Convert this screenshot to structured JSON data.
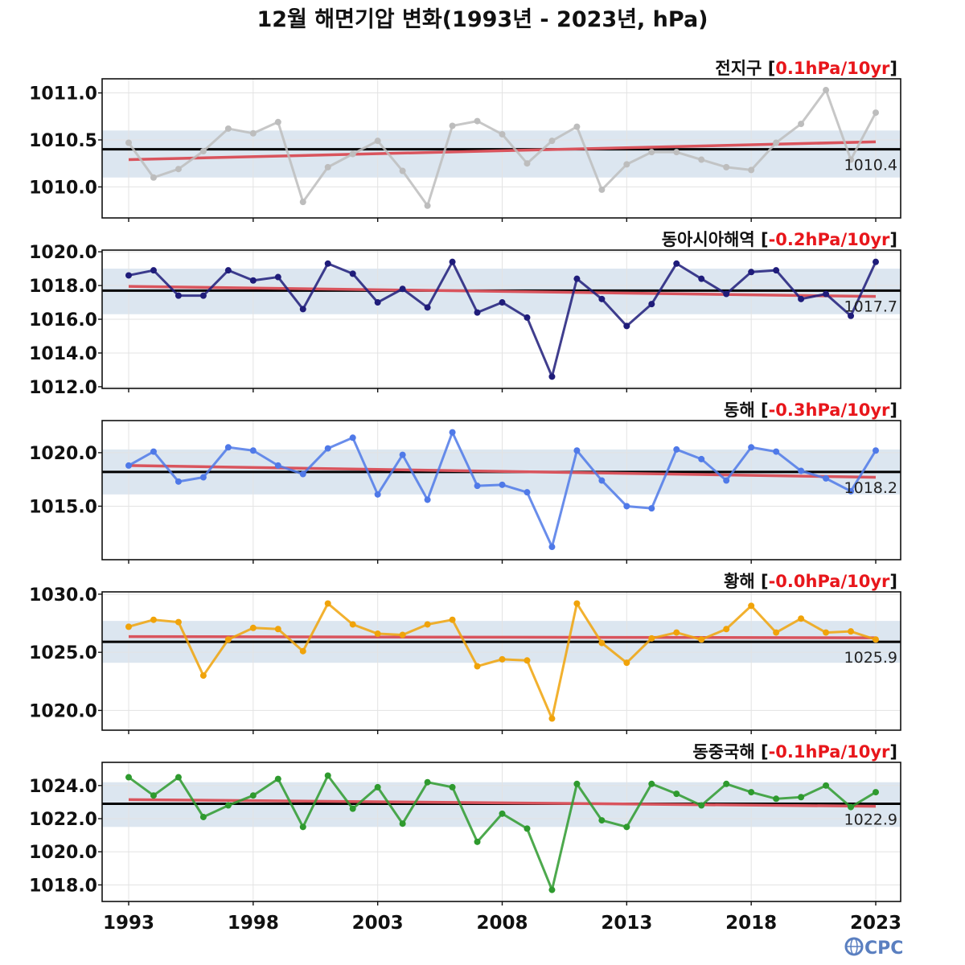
{
  "chart_data": {
    "type": "line",
    "title": "12월 해면기압 변화(1993년 - 2023년, hPa)",
    "x": [
      1993,
      1994,
      1995,
      1996,
      1997,
      1998,
      1999,
      2000,
      2001,
      2002,
      2003,
      2004,
      2005,
      2006,
      2007,
      2008,
      2009,
      2010,
      2011,
      2012,
      2013,
      2014,
      2015,
      2016,
      2017,
      2018,
      2019,
      2020,
      2021,
      2022,
      2023
    ],
    "xticks": [
      "1993",
      "1998",
      "2003",
      "2008",
      "2013",
      "2018",
      "2023"
    ],
    "panels": [
      {
        "name": "전지구",
        "trend": "0.1hPa/10yr",
        "color": "#bdbdbd",
        "ylim": [
          1009.67,
          1011.15
        ],
        "yticks": [
          1010.0,
          1010.5,
          1011.0
        ],
        "ytick_labels": [
          "1010.0",
          "1010.5",
          "1011.0"
        ],
        "mean": 1010.4,
        "mean_label": "1010.4",
        "band": [
          1010.1,
          1010.6
        ],
        "trend_line": [
          1010.29,
          1010.48
        ],
        "values": [
          1010.47,
          1010.1,
          1010.19,
          1010.38,
          1010.62,
          1010.57,
          1010.69,
          1009.84,
          1010.21,
          1010.35,
          1010.49,
          1010.17,
          1009.8,
          1010.65,
          1010.7,
          1010.56,
          1010.25,
          1010.49,
          1010.64,
          1009.97,
          1010.24,
          1010.37,
          1010.37,
          1010.29,
          1010.21,
          1010.18,
          1010.47,
          1010.67,
          1011.03,
          1010.29,
          1010.79
        ]
      },
      {
        "name": "동아시아해역",
        "trend": "-0.2hPa/10yr",
        "color": "#1f1c7a",
        "ylim": [
          1011.9,
          1020.1
        ],
        "yticks": [
          1012.0,
          1014.0,
          1016.0,
          1018.0,
          1020.0
        ],
        "ytick_labels": [
          "1012.0",
          "1014.0",
          "1016.0",
          "1018.0",
          "1020.0"
        ],
        "mean": 1017.7,
        "mean_label": "1017.7",
        "band": [
          1016.3,
          1019.0
        ],
        "trend_line": [
          1017.95,
          1017.35
        ],
        "values": [
          1018.6,
          1018.9,
          1017.4,
          1017.4,
          1018.9,
          1018.3,
          1018.5,
          1016.6,
          1019.3,
          1018.7,
          1017.0,
          1017.8,
          1016.7,
          1019.4,
          1016.4,
          1017.0,
          1016.1,
          1012.6,
          1018.4,
          1017.2,
          1015.6,
          1016.9,
          1019.3,
          1018.4,
          1017.5,
          1018.8,
          1018.9,
          1017.2,
          1017.5,
          1016.2,
          1019.4
        ]
      },
      {
        "name": "동해",
        "trend": "-0.3hPa/10yr",
        "color": "#4f79e8",
        "ylim": [
          1010.0,
          1023.0
        ],
        "yticks": [
          1015.0,
          1020.0
        ],
        "ytick_labels": [
          "1015.0",
          "1020.0"
        ],
        "mean": 1018.2,
        "mean_label": "1018.2",
        "band": [
          1016.1,
          1020.3
        ],
        "trend_line": [
          1018.8,
          1017.7
        ],
        "values": [
          1018.8,
          1020.1,
          1017.3,
          1017.7,
          1020.5,
          1020.2,
          1018.8,
          1018.0,
          1020.4,
          1021.4,
          1016.1,
          1019.8,
          1015.6,
          1021.9,
          1016.9,
          1017.0,
          1016.3,
          1011.2,
          1020.2,
          1017.4,
          1015.0,
          1014.8,
          1020.3,
          1019.4,
          1017.4,
          1020.5,
          1020.1,
          1018.3,
          1017.6,
          1016.4,
          1020.2
        ]
      },
      {
        "name": "황해",
        "trend": "-0.0hPa/10yr",
        "color": "#f0a30a",
        "ylim": [
          1018.3,
          1030.2
        ],
        "yticks": [
          1020.0,
          1025.0,
          1030.0
        ],
        "ytick_labels": [
          "1020.0",
          "1025.0",
          "1030.0"
        ],
        "mean": 1025.9,
        "mean_label": "1025.9",
        "band": [
          1024.1,
          1027.7
        ],
        "trend_line": [
          1026.35,
          1026.25
        ],
        "values": [
          1027.2,
          1027.8,
          1027.6,
          1023.0,
          1026.1,
          1027.1,
          1027.0,
          1025.1,
          1029.2,
          1027.4,
          1026.6,
          1026.5,
          1027.4,
          1027.8,
          1023.8,
          1024.4,
          1024.3,
          1019.3,
          1029.2,
          1025.8,
          1024.1,
          1026.2,
          1026.7,
          1026.1,
          1027.0,
          1029.0,
          1026.7,
          1027.9,
          1026.7,
          1026.8,
          1026.1
        ]
      },
      {
        "name": "동중국해",
        "trend": "-0.1hPa/10yr",
        "color": "#2e9a2e",
        "ylim": [
          1017.0,
          1025.4
        ],
        "yticks": [
          1018.0,
          1020.0,
          1022.0,
          1024.0
        ],
        "ytick_labels": [
          "1018.0",
          "1020.0",
          "1022.0",
          "1024.0"
        ],
        "mean": 1022.9,
        "mean_label": "1022.9",
        "band": [
          1021.5,
          1024.2
        ],
        "trend_line": [
          1023.15,
          1022.75
        ],
        "values": [
          1024.5,
          1023.4,
          1024.5,
          1022.1,
          1022.8,
          1023.4,
          1024.4,
          1021.5,
          1024.6,
          1022.6,
          1023.9,
          1021.7,
          1024.2,
          1023.9,
          1020.6,
          1022.3,
          1021.4,
          1017.7,
          1024.1,
          1021.9,
          1021.5,
          1024.1,
          1023.5,
          1022.8,
          1024.1,
          1023.6,
          1023.2,
          1023.3,
          1024.0,
          1022.7,
          1023.6
        ]
      }
    ],
    "colors": {
      "band": "#dce6f0",
      "trend_line": "#d9545d",
      "mean_line": "#000000",
      "grid": "#e3e3e3"
    },
    "grid": true
  },
  "logo": {
    "text": "CPC",
    "icon": "globe-icon"
  }
}
